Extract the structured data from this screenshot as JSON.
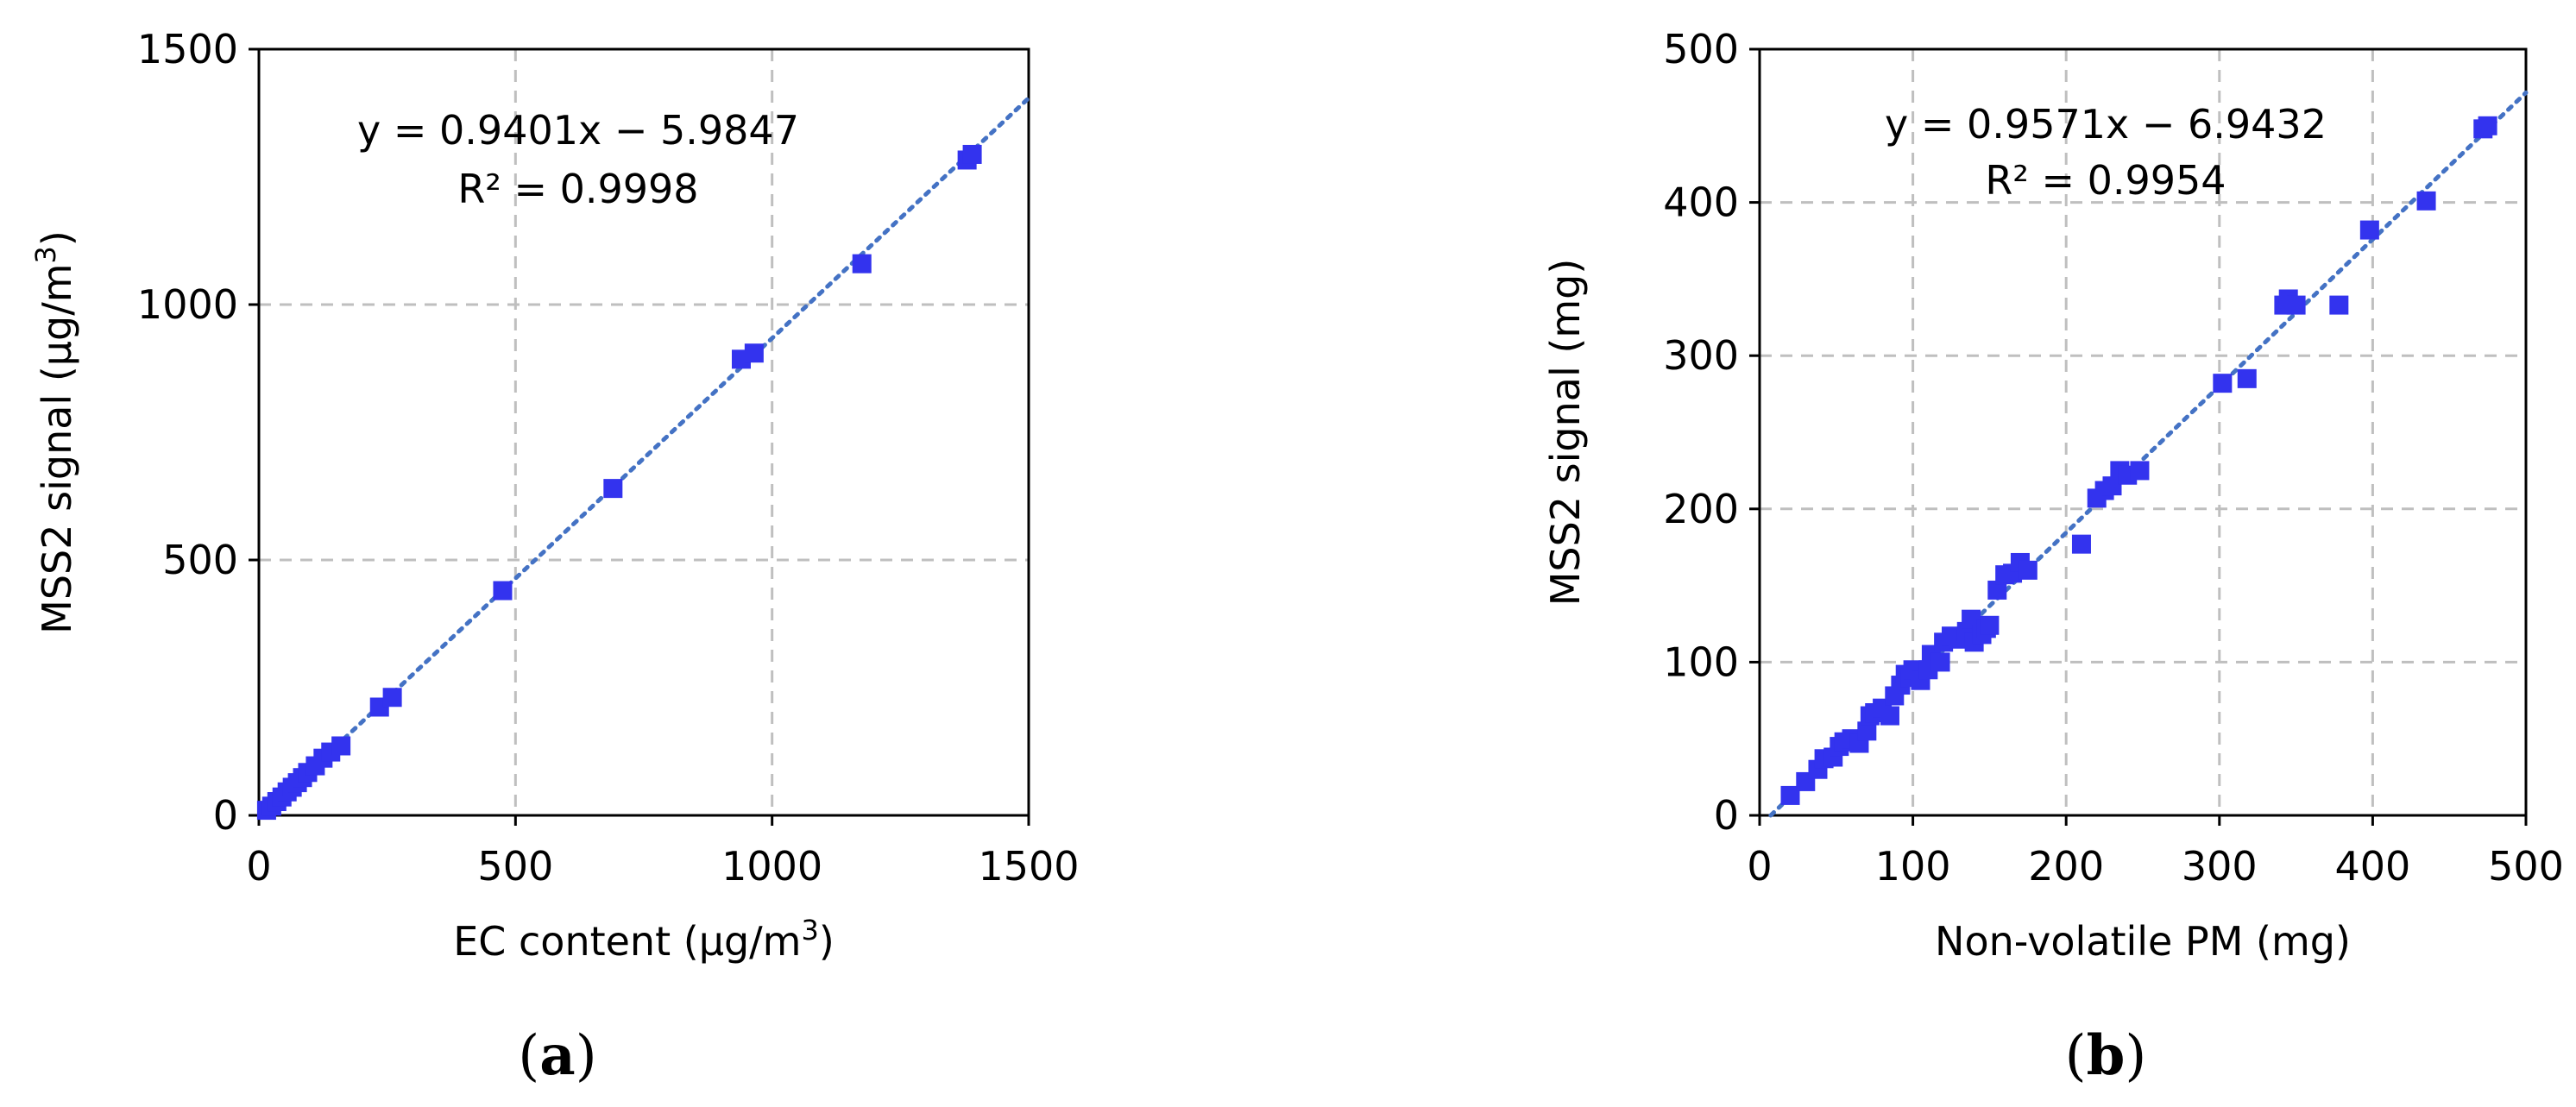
{
  "chart_data": [
    {
      "type": "scatter",
      "panel_label": "a",
      "xlabel": "EC content (µg/m",
      "xlabel_sup": "3",
      "xlabel_tail": ")",
      "ylabel": "MSS2 signal (µg/m",
      "ylabel_sup": "3",
      "ylabel_tail": ")",
      "xlim": [
        0,
        1500
      ],
      "ylim": [
        0,
        1500
      ],
      "xticks": [
        "0",
        "500",
        "1000",
        "1500"
      ],
      "yticks": [
        "0",
        "500",
        "1000",
        "1500"
      ],
      "grid": true,
      "point_color": "#3333ee",
      "trendline_color": "#4472c4",
      "equation": "y = 0.9401x − 5.9847",
      "r2": "R² = 0.9998",
      "trendline": {
        "slope": 0.9401,
        "intercept": -5.9847
      },
      "series": [
        {
          "x": [
            15,
            25,
            35,
            45,
            55,
            65,
            75,
            85,
            95,
            110,
            125,
            140,
            160,
            235,
            260,
            475,
            690,
            940,
            965,
            1175,
            1380,
            1390
          ],
          "y": [
            10,
            18,
            27,
            36,
            46,
            55,
            64,
            74,
            84,
            97,
            112,
            124,
            136,
            212,
            231,
            440,
            640,
            893,
            905,
            1080,
            1283,
            1294
          ]
        }
      ]
    },
    {
      "type": "scatter",
      "panel_label": "b",
      "xlabel": "Non-volatile PM (mg)",
      "ylabel": "MSS2 signal (mg)",
      "xlim": [
        0,
        500
      ],
      "ylim": [
        0,
        500
      ],
      "xticks": [
        "0",
        "100",
        "200",
        "300",
        "400",
        "500"
      ],
      "yticks": [
        "0",
        "100",
        "200",
        "300",
        "400",
        "500"
      ],
      "grid": true,
      "point_color": "#3333ee",
      "trendline_color": "#4472c4",
      "equation": "y = 0.9571x − 6.9432",
      "r2": "R² = 0.9954",
      "trendline": {
        "slope": 0.9571,
        "intercept": -6.9432
      },
      "series": [
        {
          "x": [
            20,
            30,
            38,
            42,
            48,
            52,
            55,
            60,
            65,
            70,
            72,
            75,
            80,
            85,
            88,
            92,
            95,
            98,
            100,
            105,
            110,
            112,
            118,
            120,
            125,
            130,
            135,
            138,
            140,
            145,
            148,
            150,
            155,
            160,
            165,
            170,
            175,
            210,
            220,
            225,
            230,
            235,
            240,
            248,
            302,
            318,
            342,
            345,
            350,
            378,
            398,
            435,
            472,
            475
          ],
          "y": [
            13,
            22,
            30,
            37,
            38,
            45,
            48,
            50,
            47,
            55,
            65,
            67,
            70,
            65,
            78,
            85,
            92,
            90,
            95,
            88,
            95,
            105,
            100,
            113,
            117,
            115,
            120,
            128,
            113,
            118,
            122,
            124,
            147,
            157,
            158,
            165,
            160,
            177,
            207,
            212,
            215,
            225,
            222,
            225,
            282,
            285,
            333,
            337,
            333,
            333,
            382,
            401,
            448,
            450
          ]
        }
      ]
    }
  ]
}
